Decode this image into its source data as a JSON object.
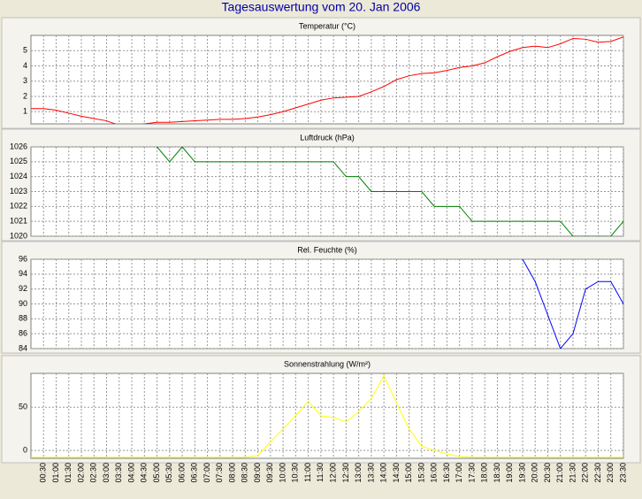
{
  "title": "Tagesauswertung vom 20. Jan 2006",
  "chart_data": [
    {
      "type": "line",
      "title": "Temperatur (°C)",
      "ylim": [
        0.2,
        6
      ],
      "yticks": [
        1,
        2,
        3,
        4,
        5
      ],
      "grid": true,
      "series": [
        {
          "name": null,
          "color": "#ff0000",
          "values": [
            1.2,
            1.2,
            1.1,
            0.9,
            0.7,
            0.55,
            0.4,
            0.1,
            0.1,
            0.2,
            0.3,
            0.3,
            0.35,
            0.4,
            0.45,
            0.5,
            0.5,
            0.55,
            0.65,
            0.8,
            1.0,
            1.25,
            1.5,
            1.75,
            1.9,
            1.95,
            2.0,
            2.3,
            2.65,
            3.1,
            3.35,
            3.5,
            3.55,
            3.7,
            3.9,
            4.0,
            4.2,
            4.6,
            4.95,
            5.2,
            5.3,
            5.2,
            5.45,
            5.8,
            5.75,
            5.55,
            5.6,
            5.9
          ]
        }
      ]
    },
    {
      "type": "line",
      "title": "Luftdruck (hPa)",
      "ylim": [
        1020,
        1026
      ],
      "yticks": [
        1020,
        1021,
        1022,
        1023,
        1024,
        1025,
        1026
      ],
      "grid": true,
      "series": [
        {
          "name": null,
          "color": "#008000",
          "values": [
            null,
            null,
            null,
            null,
            null,
            null,
            null,
            null,
            null,
            null,
            1026,
            1025,
            1026,
            1025,
            1025,
            1025,
            1025,
            1025,
            1025,
            1025,
            1025,
            1025,
            1025,
            1025,
            1025,
            1024,
            1024,
            1023,
            1023,
            1023,
            1023,
            1023,
            1022,
            1022,
            1022,
            1021,
            1021,
            1021,
            1021,
            1021,
            1021,
            1021,
            1021,
            1020,
            1020,
            1020,
            1020,
            1021
          ]
        }
      ]
    },
    {
      "type": "line",
      "title": "Rel. Feuchte (%)",
      "ylim": [
        84,
        96
      ],
      "yticks": [
        84,
        86,
        88,
        90,
        92,
        94,
        96
      ],
      "grid": true,
      "series": [
        {
          "name": null,
          "color": "#0000ff",
          "values": [
            null,
            null,
            null,
            null,
            null,
            null,
            null,
            null,
            null,
            null,
            null,
            null,
            null,
            null,
            null,
            null,
            null,
            null,
            null,
            null,
            null,
            null,
            null,
            null,
            null,
            null,
            null,
            null,
            null,
            null,
            null,
            null,
            null,
            null,
            null,
            null,
            null,
            null,
            null,
            96,
            93,
            88.5,
            84,
            86,
            92,
            93,
            93,
            90
          ]
        }
      ]
    },
    {
      "type": "line",
      "title": "Sonnenstrahlung (W/m²)",
      "ylim": [
        -9,
        89
      ],
      "yticks": [
        0,
        50
      ],
      "grid": true,
      "categories": [
        null,
        "00:30",
        "01:00",
        "01:30",
        "02:00",
        "02:30",
        "03:00",
        "03:30",
        "04:00",
        "04:30",
        "05:00",
        "05:30",
        "06:00",
        "06:30",
        "07:00",
        "07:30",
        "08:00",
        "08:30",
        "09:00",
        "09:30",
        "10:00",
        "10:30",
        "11:00",
        "11:30",
        "12:00",
        "12:30",
        "13:00",
        "13:30",
        "14:00",
        "14:30",
        "15:00",
        "15:30",
        "16:00",
        "16:30",
        "17:00",
        "17:30",
        "18:00",
        "18:30",
        "19:00",
        "19:30",
        "20:00",
        "20:30",
        "21:00",
        "21:30",
        "22:00",
        "22:30",
        "23:00",
        "23:30"
      ],
      "series": [
        {
          "name": null,
          "color": "#ffff00",
          "values": [
            -8,
            -8,
            -8,
            -8,
            -8,
            -8,
            -8,
            -8,
            -8,
            -8,
            -8,
            -8,
            -8,
            -8,
            -8,
            -8,
            -8,
            -8,
            -6,
            10,
            25,
            40,
            57,
            40,
            38,
            33,
            45,
            60,
            86,
            55,
            25,
            5,
            0,
            -4,
            -7,
            -8,
            -8,
            -8,
            -8,
            -8,
            -8,
            -8,
            -8,
            -8,
            -8,
            -8,
            -8,
            -8
          ]
        }
      ]
    }
  ]
}
